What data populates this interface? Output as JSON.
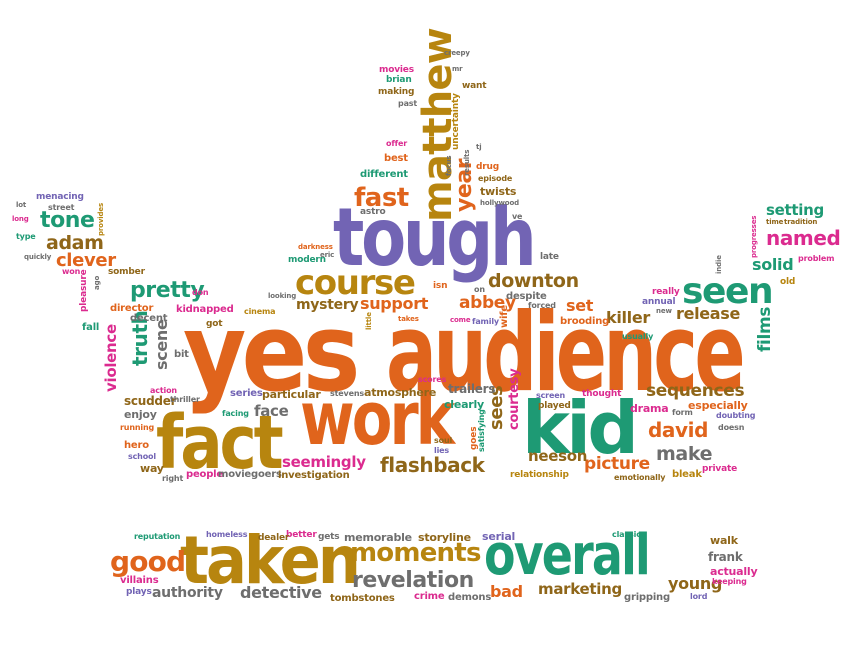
{
  "palette": {
    "orange": "#e0641c",
    "gold": "#b7850f",
    "purple": "#7264b4",
    "green": "#1e9a74",
    "magenta": "#db2b8f",
    "grey": "#6e6e6e",
    "brown": "#8f6619"
  },
  "words": {
    "yes": "yes",
    "audience": "audience",
    "tough": "tough",
    "kid": "kid",
    "work": "work",
    "fact": "fact",
    "taken": "taken",
    "overall": "overall",
    "matthew": "matthew",
    "course": "course",
    "seen": "seen",
    "moments": "moments",
    "good": "good",
    "revelation": "revelation",
    "downton": "downton",
    "abbey": "abbey",
    "support": "support",
    "mystery": "mystery",
    "fast": "fast",
    "year": "year",
    "tone": "tone",
    "adam": "adam",
    "clever": "clever",
    "pretty": "pretty",
    "truth": "truth",
    "scene": "scene",
    "violence": "violence",
    "setting": "setting",
    "named": "named",
    "solid": "solid",
    "films": "films",
    "release": "release",
    "killer": "killer",
    "set": "set",
    "sequences": "sequences",
    "david": "david",
    "make": "make",
    "picture": "picture",
    "neeson": "neeson",
    "flashback": "flashback",
    "seemingly": "seemingly",
    "face": "face",
    "sees": "sees",
    "courtesy": "courtesy",
    "detective": "detective",
    "authority": "authority",
    "marketing": "marketing",
    "bad": "bad",
    "young": "young",
    "actually": "actually",
    "frank": "frank",
    "walk": "walk",
    "serial": "serial",
    "storyline": "storyline",
    "memorable": "memorable",
    "gets": "gets",
    "dealer": "dealer",
    "better": "better",
    "homeless": "homeless",
    "reputation": "reputation",
    "villains": "villains",
    "plays": "plays",
    "tombstones": "tombstones",
    "crime": "crime",
    "demons": "demons",
    "gripping": "gripping",
    "lord": "lord",
    "keeping": "keeping",
    "classic": "classic",
    "people": "people",
    "moviegoers": "moviegoers",
    "investigation": "investigation",
    "relationship": "relationship",
    "emotionally": "emotionally",
    "bleak": "bleak",
    "private": "private",
    "drama": "drama",
    "especially": "especially",
    "doubting": "doubting",
    "doesn": "doesn",
    "form": "form",
    "thought": "thought",
    "screen": "screen",
    "played": "played",
    "clearly": "clearly",
    "trailers": "trailers",
    "atmosphere": "atmosphere",
    "particular": "particular",
    "series": "series",
    "stevens": "stevens",
    "scores": "scores",
    "facing": "facing",
    "goes": "goes",
    "satisfying": "satisfying",
    "soul": "soul",
    "lies": "lies",
    "scudder": "scudder",
    "thriller": "thriller",
    "action": "action",
    "enjoy": "enjoy",
    "running": "running",
    "hero": "hero",
    "school": "school",
    "way": "way",
    "right": "right",
    "bit": "bit",
    "got": "got",
    "kidnapped": "kidnapped",
    "director": "director",
    "decent": "decent",
    "don": "don",
    "cinema": "cinema",
    "looking": "looking",
    "darkness": "darkness",
    "modern": "modern",
    "eric": "eric",
    "astro": "astro",
    "little": "little",
    "takes": "takes",
    "come": "come",
    "family": "family",
    "wife": "wife",
    "isn": "isn",
    "on": "on",
    "despite": "despite",
    "forced": "forced",
    "brooding": "brooding",
    "late": "late",
    "usually": "usually",
    "annual": "annual",
    "new": "new",
    "really": "really",
    "indie": "indie",
    "old": "old",
    "problem": "problem",
    "tradition": "tradition",
    "time": "time",
    "progresses": "progresses",
    "different": "different",
    "best": "best",
    "offer": "offer",
    "focus": "focus",
    "results": "results",
    "drug": "drug",
    "episode": "episode",
    "twists": "twists",
    "hollywood": "hollywood",
    "ve": "ve",
    "uncertainty": "uncertainty",
    "tj": "tj",
    "want": "want",
    "mr": "mr",
    "creepy": "creepy",
    "movies": "movies",
    "brian": "brian",
    "making": "making",
    "past": "past",
    "menacing": "menacing",
    "street": "street",
    "lot": "lot",
    "long": "long",
    "type": "type",
    "provides": "provides",
    "quickly": "quickly",
    "somber": "somber",
    "won": "won",
    "pleasure": "pleasure",
    "ago": "ago",
    "fall": "fall"
  }
}
